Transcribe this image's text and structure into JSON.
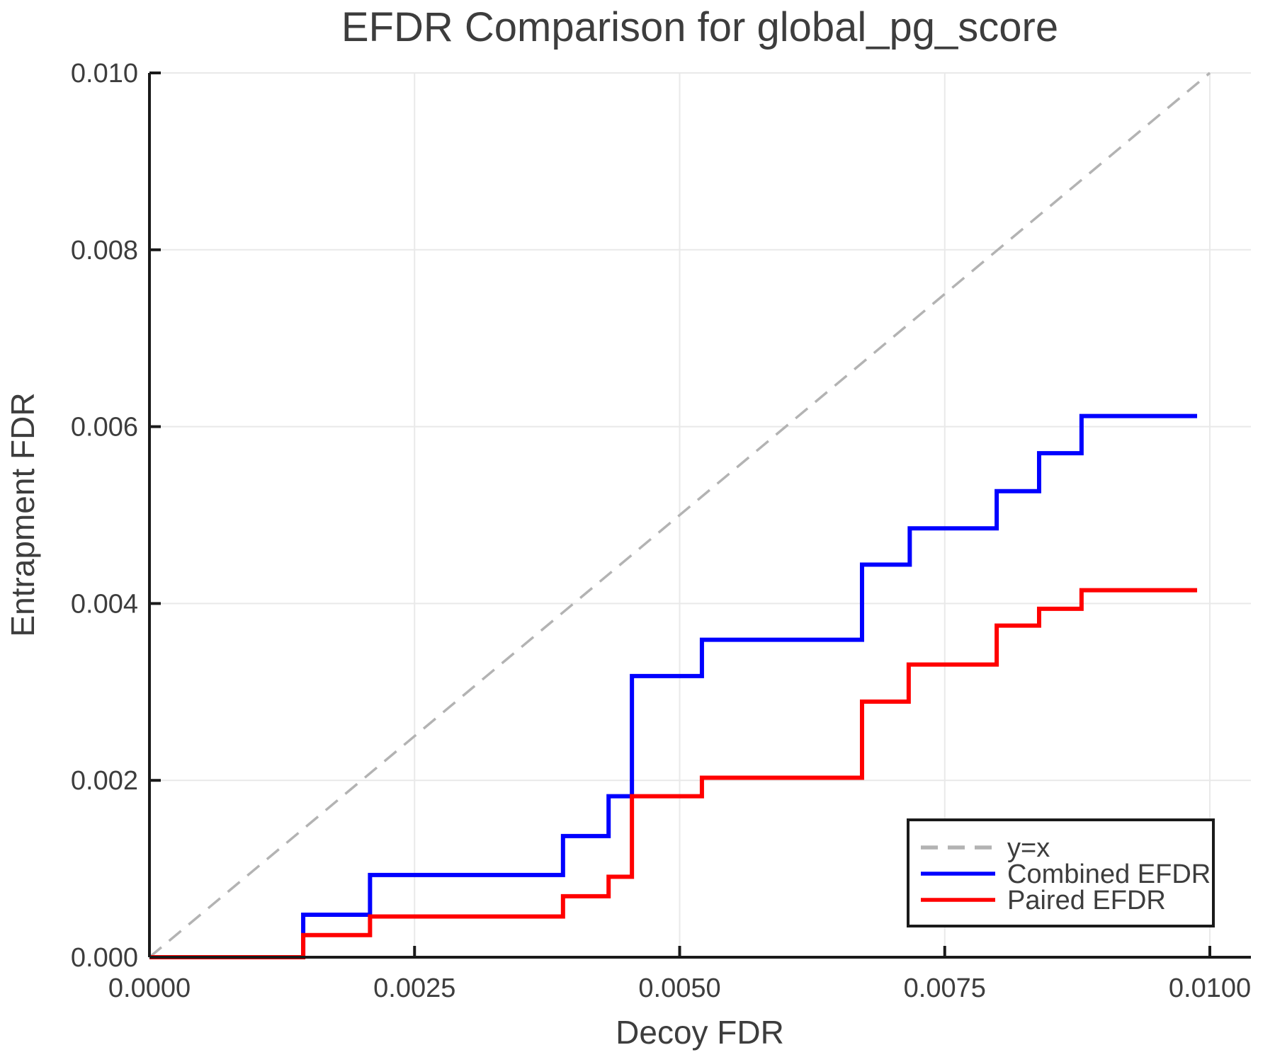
{
  "chart_data": {
    "type": "line",
    "title": "EFDR Comparison for global_pg_score",
    "xlabel": "Decoy FDR",
    "ylabel": "Entrapment FDR",
    "xlim": [
      0,
      0.0104
    ],
    "ylim": [
      0,
      0.01
    ],
    "grid": true,
    "legend_position": "lower right",
    "x_ticks": {
      "values": [
        0.0,
        0.0025,
        0.005,
        0.0075,
        0.01
      ],
      "labels": [
        "0.0000",
        "0.0025",
        "0.0050",
        "0.0075",
        "0.0100"
      ]
    },
    "y_ticks": {
      "values": [
        0.0,
        0.002,
        0.004,
        0.006,
        0.008,
        0.01
      ],
      "labels": [
        "0.000",
        "0.002",
        "0.004",
        "0.006",
        "0.008",
        "0.010"
      ]
    },
    "colors": {
      "identity_line": "#b3b3b3",
      "combined": "#0000ff",
      "paired": "#ff0000",
      "gridline": "#e9e9e9",
      "spine": "#1a1a1a",
      "text": "#3d3d3d",
      "legend_border": "#1a1a1a",
      "legend_bg": "#ffffff"
    },
    "series": [
      {
        "name": "y=x",
        "style": "dashed",
        "color_key": "identity_line",
        "points": [
          [
            0.0,
            0.0
          ],
          [
            0.01,
            0.01
          ]
        ]
      },
      {
        "name": "Combined EFDR",
        "style": "step",
        "color_key": "combined",
        "start": [
          0.0,
          0.0
        ],
        "steps": [
          [
            0.00145,
            0.00048
          ],
          [
            0.00208,
            0.00093
          ],
          [
            0.0039,
            0.00137
          ],
          [
            0.00433,
            0.00182
          ],
          [
            0.00455,
            0.00318
          ],
          [
            0.00521,
            0.00359
          ],
          [
            0.00672,
            0.00444
          ],
          [
            0.00717,
            0.00485
          ],
          [
            0.00799,
            0.00527
          ],
          [
            0.00839,
            0.0057
          ],
          [
            0.00879,
            0.00612
          ]
        ],
        "x_end": 0.00988
      },
      {
        "name": "Paired EFDR",
        "style": "step",
        "color_key": "paired",
        "start": [
          0.0,
          0.0
        ],
        "steps": [
          [
            0.00145,
            0.00025
          ],
          [
            0.00208,
            0.00046
          ],
          [
            0.0039,
            0.00069
          ],
          [
            0.00433,
            0.00091
          ],
          [
            0.00455,
            0.00182
          ],
          [
            0.00521,
            0.00203
          ],
          [
            0.00672,
            0.00289
          ],
          [
            0.00716,
            0.00331
          ],
          [
            0.00799,
            0.00375
          ],
          [
            0.00839,
            0.00394
          ],
          [
            0.00879,
            0.00415
          ]
        ],
        "x_end": 0.00988
      }
    ],
    "legend": {
      "entries": [
        {
          "label": "y=x",
          "color_key": "identity_line",
          "dashed": true
        },
        {
          "label": "Combined EFDR",
          "color_key": "combined",
          "dashed": false
        },
        {
          "label": "Paired EFDR",
          "color_key": "paired",
          "dashed": false
        }
      ]
    }
  }
}
